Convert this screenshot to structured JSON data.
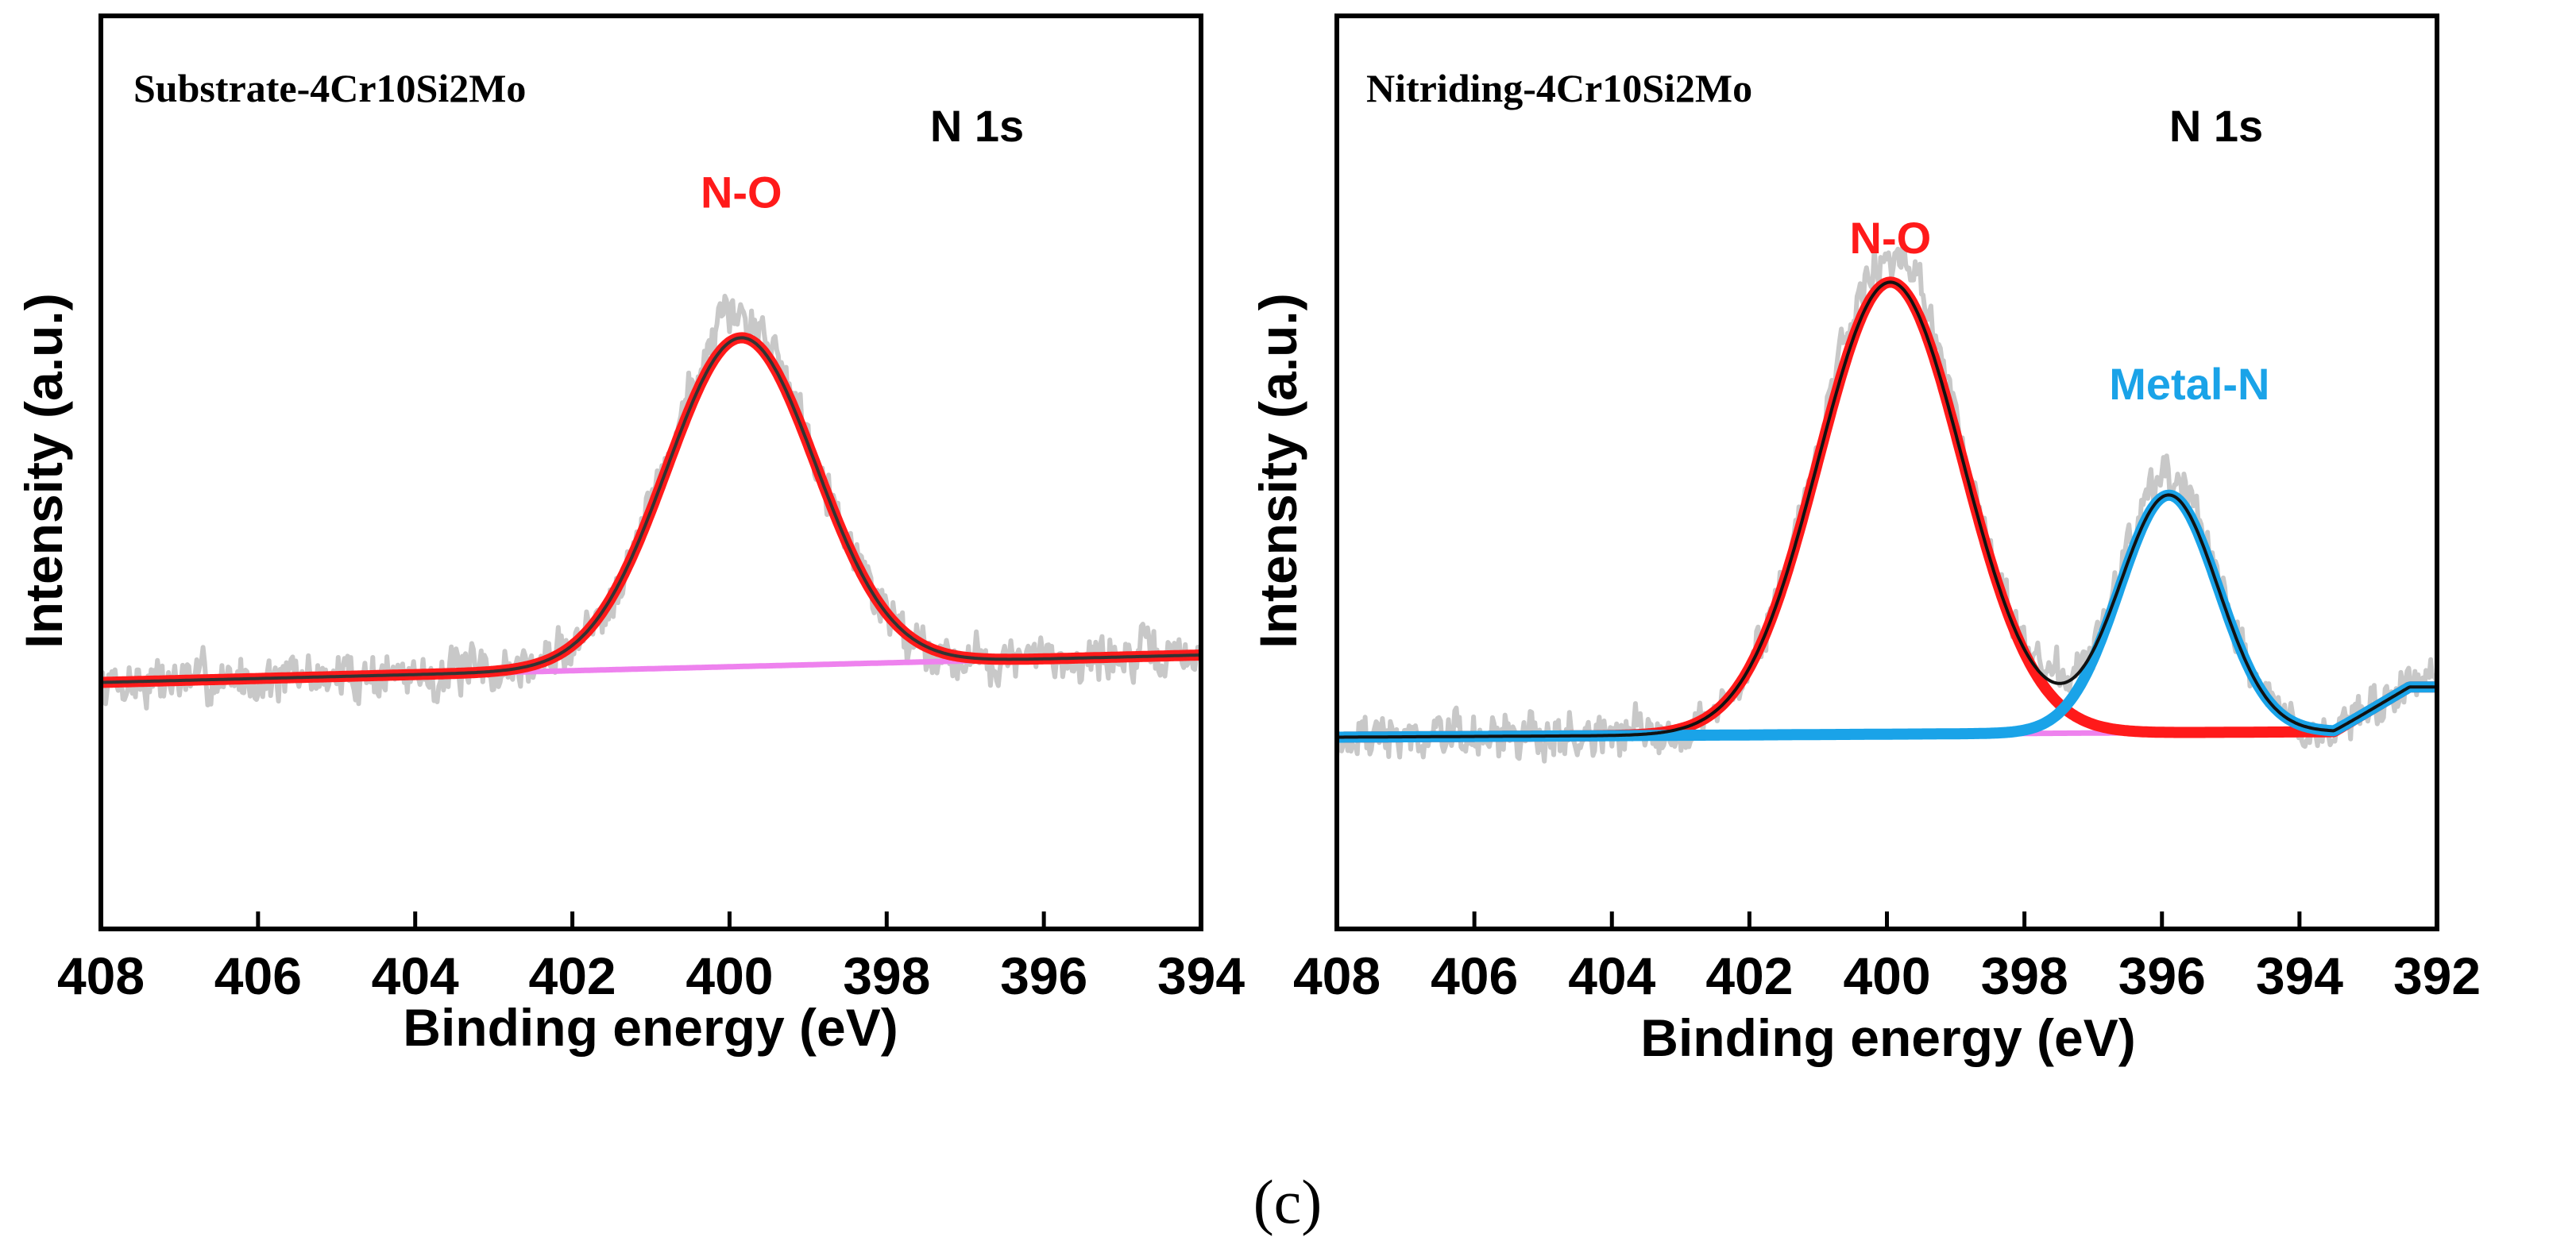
{
  "figure": {
    "caption": "(c)"
  },
  "chart_data": [
    {
      "type": "line",
      "title": "Substrate-4Cr10Si2Mo",
      "core_label": "N 1s",
      "xlabel": "Binding energy (eV)",
      "ylabel": "Intensity (a.u.)",
      "xlim": [
        408,
        394
      ],
      "ylim": [
        0,
        100
      ],
      "xticks": [
        408,
        406,
        404,
        402,
        400,
        398,
        396,
        394
      ],
      "background": {
        "x": [
          408,
          394
        ],
        "y": [
          27,
          30
        ]
      },
      "peaks": [
        {
          "name": "N-O",
          "center": 399.85,
          "sigma": 0.95,
          "height": 36,
          "color": "#ff1a1a",
          "label_x": 399.85,
          "label_y": 79
        }
      ],
      "envelope_color": "#333333",
      "raw_color": "#c8c8c8",
      "background_color": "#ee82ee",
      "noise": {
        "amplitude": 3.2,
        "seed": 7
      }
    },
    {
      "type": "line",
      "title": "Nitriding-4Cr10Si2Mo",
      "core_label": "N 1s",
      "xlabel": "Binding energy (eV)",
      "ylabel": "Intensity (a.u.)",
      "xlim": [
        408,
        392
      ],
      "ylim": [
        0,
        100
      ],
      "xticks": [
        408,
        406,
        404,
        402,
        400,
        398,
        396,
        394,
        392
      ],
      "background": {
        "x": [
          408,
          393.5,
          392.4
        ],
        "y": [
          21,
          21.6,
          26.5
        ]
      },
      "peaks": [
        {
          "name": "N-O",
          "center": 399.95,
          "sigma": 1.05,
          "height": 49.5,
          "color": "#ff1a1a",
          "label_x": 399.95,
          "label_y": 74
        },
        {
          "name": "Metal-N",
          "center": 395.9,
          "sigma": 0.72,
          "height": 26,
          "color": "#1aa3e8",
          "label_x": 395.6,
          "label_y": 58
        }
      ],
      "envelope_color": "#111111",
      "raw_color": "#c8c8c8",
      "background_color": "#ee82ee",
      "noise": {
        "amplitude": 3.0,
        "seed": 19
      }
    }
  ]
}
